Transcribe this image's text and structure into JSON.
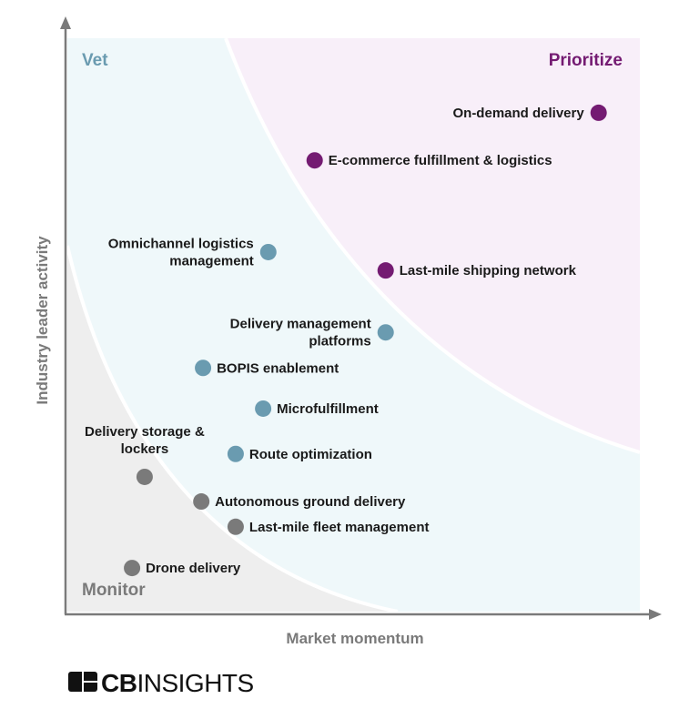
{
  "chart_data": {
    "type": "scatter",
    "title": "",
    "xlabel": "Market momentum",
    "ylabel": "Industry leader activity",
    "xlim": [
      0,
      100
    ],
    "ylim": [
      0,
      100
    ],
    "grid": false,
    "quadrants": [
      {
        "name": "Vet",
        "color": "#6a9bb0",
        "fill": "#eff8fa"
      },
      {
        "name": "Prioritize",
        "color": "#741b72",
        "fill": "#f8eff9"
      },
      {
        "name": "Monitor",
        "color": "#7a7a7a",
        "fill": "#eeeeee"
      }
    ],
    "points": [
      {
        "label": [
          "On-demand delivery"
        ],
        "x": 92.8,
        "y": 87.0,
        "group": "Prioritize",
        "label_side": "left"
      },
      {
        "label": [
          "E-commerce fulfillment & logistics"
        ],
        "x": 43.2,
        "y": 78.7,
        "group": "Prioritize",
        "label_side": "right"
      },
      {
        "label": [
          "Last-mile shipping network"
        ],
        "x": 55.6,
        "y": 59.5,
        "group": "Prioritize",
        "label_side": "right"
      },
      {
        "label": [
          "Omnichannel logistics",
          "management"
        ],
        "x": 35.1,
        "y": 62.7,
        "group": "Vet",
        "label_side": "left"
      },
      {
        "label": [
          "Delivery management",
          "platforms"
        ],
        "x": 55.6,
        "y": 48.7,
        "group": "Vet",
        "label_side": "left"
      },
      {
        "label": [
          "BOPIS enablement"
        ],
        "x": 23.7,
        "y": 42.5,
        "group": "Vet",
        "label_side": "right"
      },
      {
        "label": [
          "Microfulfillment"
        ],
        "x": 34.2,
        "y": 35.4,
        "group": "Vet",
        "label_side": "right"
      },
      {
        "label": [
          "Route optimization"
        ],
        "x": 29.4,
        "y": 27.5,
        "group": "Vet",
        "label_side": "right"
      },
      {
        "label": [
          "Delivery storage &",
          "lockers"
        ],
        "x": 13.5,
        "y": 23.5,
        "group": "Monitor",
        "label_side": "top"
      },
      {
        "label": [
          "Autonomous ground delivery"
        ],
        "x": 23.4,
        "y": 19.2,
        "group": "Monitor",
        "label_side": "right"
      },
      {
        "label": [
          "Last-mile fleet management"
        ],
        "x": 29.4,
        "y": 14.8,
        "group": "Monitor",
        "label_side": "right"
      },
      {
        "label": [
          "Drone delivery"
        ],
        "x": 11.3,
        "y": 7.6,
        "group": "Monitor",
        "label_side": "right"
      }
    ]
  },
  "logo": {
    "text": "CBINSIGHTS"
  }
}
